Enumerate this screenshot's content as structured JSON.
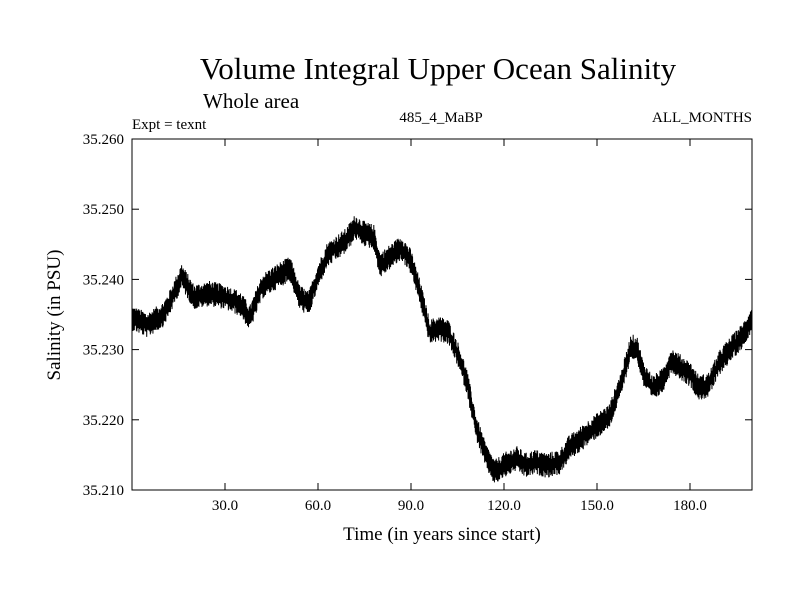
{
  "chart_data": {
    "type": "line",
    "title": "Volume Integral Upper Ocean Salinity",
    "subtitle": "Whole area",
    "annotations": {
      "left": "Expt = texnt",
      "center": "485_4_MaBP",
      "right": "ALL_MONTHS"
    },
    "xlabel": "Time (in years since start)",
    "ylabel": "Salinity (in PSU)",
    "xlim": [
      0,
      200
    ],
    "ylim": [
      35.21,
      35.26
    ],
    "xticks": [
      30,
      60,
      90,
      120,
      150,
      180
    ],
    "xtick_labels": [
      "30.0",
      "60.0",
      "90.0",
      "120.0",
      "150.0",
      "180.0"
    ],
    "yticks": [
      35.21,
      35.22,
      35.23,
      35.24,
      35.25,
      35.26
    ],
    "ytick_labels": [
      "35.210",
      "35.220",
      "35.230",
      "35.240",
      "35.250",
      "35.260"
    ],
    "grid": false,
    "legend": "none",
    "series": [
      {
        "name": "salinity",
        "noise_amplitude": 0.0018,
        "x": [
          0,
          5,
          10,
          12,
          16,
          20,
          25,
          30,
          35,
          38,
          42,
          47,
          51,
          54,
          57,
          60,
          63,
          66,
          69,
          72,
          75,
          78,
          80,
          84,
          87,
          90,
          93,
          96,
          99,
          102,
          105,
          108,
          111,
          114,
          117,
          120,
          124,
          127,
          130,
          134,
          138,
          141,
          144,
          148,
          151,
          154,
          158,
          161,
          163,
          165,
          168,
          171,
          174,
          177,
          180,
          183,
          186,
          190,
          194,
          197,
          200
        ],
        "values": [
          35.2345,
          35.2335,
          35.235,
          35.2365,
          35.2405,
          35.2375,
          35.238,
          35.2375,
          35.2365,
          35.2345,
          35.239,
          35.2405,
          35.2415,
          35.2375,
          35.2365,
          35.2405,
          35.2435,
          35.2445,
          35.2455,
          35.2475,
          35.2465,
          35.246,
          35.242,
          35.2435,
          35.2445,
          35.2425,
          35.238,
          35.2325,
          35.233,
          35.2325,
          35.2295,
          35.2255,
          35.219,
          35.215,
          35.2125,
          35.2135,
          35.2145,
          35.2135,
          35.214,
          35.2135,
          35.214,
          35.216,
          35.217,
          35.2185,
          35.2195,
          35.2205,
          35.2255,
          35.2305,
          35.23,
          35.2265,
          35.2245,
          35.2255,
          35.2285,
          35.2275,
          35.2265,
          35.2245,
          35.225,
          35.2285,
          35.2305,
          35.232,
          35.2345
        ]
      }
    ]
  }
}
